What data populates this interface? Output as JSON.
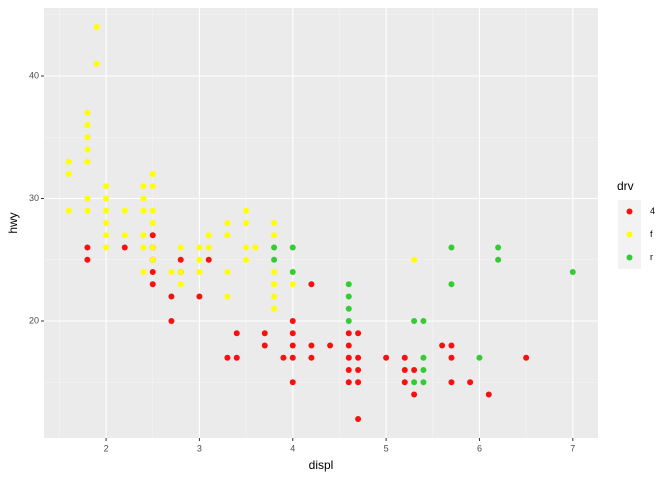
{
  "chart_data": {
    "type": "scatter",
    "x_label": "displ",
    "y_label": "hwy",
    "legend_title": "drv",
    "xlim": [
      1.335,
      7.27
    ],
    "ylim": [
      10.45,
      45.55
    ],
    "xticks": [
      2,
      3,
      4,
      5,
      6,
      7
    ],
    "yticks": [
      20,
      30,
      40
    ],
    "xminor": [
      1.5,
      2.5,
      3.5,
      4.5,
      5.5,
      6.5
    ],
    "yminor": [
      15,
      25,
      35,
      45
    ],
    "grid": true,
    "legend": "right",
    "series": [
      {
        "name": "4",
        "color": "#f8100f",
        "x": [
          1.8,
          1.8,
          2.2,
          2.5,
          2.5,
          2.5,
          2.5,
          2.5,
          2.7,
          2.7,
          2.8,
          2.8,
          3.0,
          3.1,
          3.3,
          3.4,
          3.4,
          3.7,
          3.7,
          3.9,
          4.0,
          4.0,
          4.0,
          4.0,
          4.0,
          4.2,
          4.2,
          4.2,
          4.4,
          4.6,
          4.6,
          4.6,
          4.6,
          4.6,
          4.7,
          4.7,
          4.7,
          4.7,
          4.7,
          5.0,
          5.2,
          5.2,
          5.2,
          5.3,
          5.3,
          5.6,
          5.7,
          5.7,
          5.7,
          5.9,
          6.1,
          6.5
        ],
        "values": [
          26,
          25,
          26,
          27,
          26,
          25,
          24,
          23,
          22,
          20,
          25,
          24,
          22,
          25,
          17,
          19,
          17,
          19,
          18,
          17,
          20,
          19,
          18,
          17,
          15,
          23,
          18,
          17,
          18,
          19,
          18,
          17,
          16,
          15,
          19,
          17,
          16,
          15,
          12,
          17,
          17,
          16,
          15,
          14,
          16,
          18,
          18,
          17,
          15,
          15,
          14,
          17
        ]
      },
      {
        "name": "f",
        "color": "#ffff00",
        "x": [
          1.6,
          1.6,
          1.6,
          1.8,
          1.8,
          1.8,
          1.8,
          1.8,
          1.8,
          1.8,
          1.9,
          1.9,
          2.0,
          2.0,
          2.0,
          2.0,
          2.0,
          2.0,
          2.2,
          2.2,
          2.4,
          2.4,
          2.4,
          2.4,
          2.4,
          2.4,
          2.5,
          2.5,
          2.5,
          2.5,
          2.5,
          2.5,
          2.7,
          2.8,
          2.8,
          2.8,
          3.0,
          3.0,
          3.0,
          3.1,
          3.1,
          3.3,
          3.3,
          3.3,
          3.3,
          3.5,
          3.5,
          3.5,
          3.5,
          3.6,
          3.8,
          3.8,
          3.8,
          3.8,
          3.8,
          3.8,
          3.8,
          4.0,
          4.0,
          5.3
        ],
        "values": [
          33,
          32,
          29,
          37,
          36,
          35,
          34,
          33,
          30,
          29,
          44,
          41,
          31,
          30,
          29,
          28,
          27,
          26,
          29,
          27,
          31,
          30,
          29,
          27,
          26,
          24,
          32,
          31,
          29,
          28,
          26,
          25,
          24,
          26,
          24,
          23,
          26,
          25,
          24,
          27,
          26,
          28,
          27,
          24,
          22,
          29,
          28,
          26,
          25,
          26,
          28,
          27,
          26,
          24,
          23,
          22,
          21,
          24,
          23,
          25
        ]
      },
      {
        "name": "r",
        "color": "#33cc33",
        "x": [
          3.8,
          3.8,
          4.0,
          4.0,
          4.6,
          4.6,
          4.6,
          4.6,
          5.3,
          5.3,
          5.4,
          5.4,
          5.4,
          5.4,
          5.7,
          5.7,
          6.0,
          6.2,
          6.2,
          7.0
        ],
        "values": [
          26,
          25,
          26,
          24,
          23,
          22,
          21,
          20,
          20,
          15,
          20,
          17,
          16,
          15,
          26,
          23,
          17,
          26,
          25,
          24
        ]
      }
    ]
  }
}
